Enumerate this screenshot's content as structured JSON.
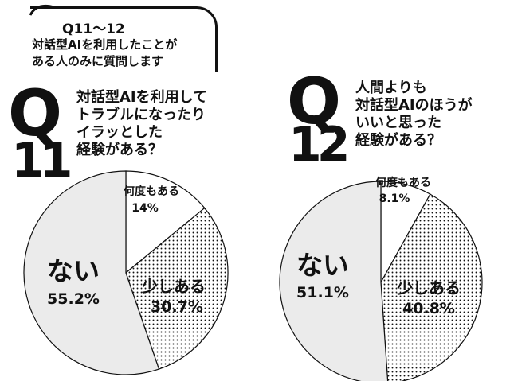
{
  "header": {
    "line1": "Q11～12",
    "line2": "対話型AIを利用したことが",
    "line3": "ある人のみに質問します"
  },
  "questions": [
    {
      "letter": "Q",
      "number": "11",
      "lines": [
        "対話型AIを利用して",
        "トラブルになったり",
        "イラッとした",
        "経験がある？"
      ]
    },
    {
      "letter": "Q",
      "number": "12",
      "lines": [
        "人間よりも",
        "対話型AIのほうが",
        "いいと思った",
        "経験がある？"
      ]
    }
  ],
  "chart_data": [
    {
      "type": "pie",
      "slices": [
        {
          "label": "何度もある",
          "value": 14,
          "value_label": "14%"
        },
        {
          "label": "少しある",
          "value": 30.7,
          "value_label": "30.7%"
        },
        {
          "label": "ない",
          "value": 55.2,
          "value_label": "55.2%"
        }
      ]
    },
    {
      "type": "pie",
      "slices": [
        {
          "label": "何度もある",
          "value": 8.1,
          "value_label": "8.1%"
        },
        {
          "label": "少しある",
          "value": 40.8,
          "value_label": "40.8%"
        },
        {
          "label": "ない",
          "value": 51.1,
          "value_label": "51.1%"
        }
      ]
    }
  ],
  "colors": {
    "often": "#ffffff",
    "sometimes_dots": "#111111",
    "never": "#ebebeb",
    "stroke": "#111111"
  }
}
